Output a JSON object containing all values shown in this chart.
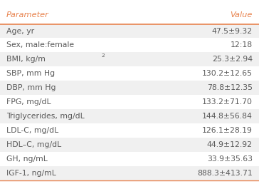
{
  "header": [
    "Parameter",
    "Value"
  ],
  "rows": [
    [
      "Age, yr",
      "47.5±9.32"
    ],
    [
      "Sex, male:female",
      "12:18"
    ],
    [
      "BMI, kg/m²",
      "25.3±2.94"
    ],
    [
      "SBP, mm Hg",
      "130.2±12.65"
    ],
    [
      "DBP, mm Hg",
      "78.8±12.35"
    ],
    [
      "FPG, mg/dL",
      "133.2±71.70"
    ],
    [
      "Triglycerides, mg/dL",
      "144.8±56.84"
    ],
    [
      "LDL-C, mg/dL",
      "126.1±28.19"
    ],
    [
      "HDL–C, mg/dL",
      "44.9±12.92"
    ],
    [
      "GH, ng/mL",
      "33.9±35.63"
    ],
    [
      "IGF-1, ng/mL",
      "888.3±413.71"
    ]
  ],
  "header_line_color": "#e8834e",
  "bottom_line_color": "#e8834e",
  "row_bg_odd": "#f0f0f0",
  "row_bg_even": "#ffffff",
  "text_color": "#5a5a5a",
  "header_text_color": "#e8834e",
  "font_size": 7.8,
  "header_font_size": 8.2,
  "bg_color": "#ffffff",
  "fig_width": 3.64,
  "fig_height": 2.58,
  "dpi": 100
}
